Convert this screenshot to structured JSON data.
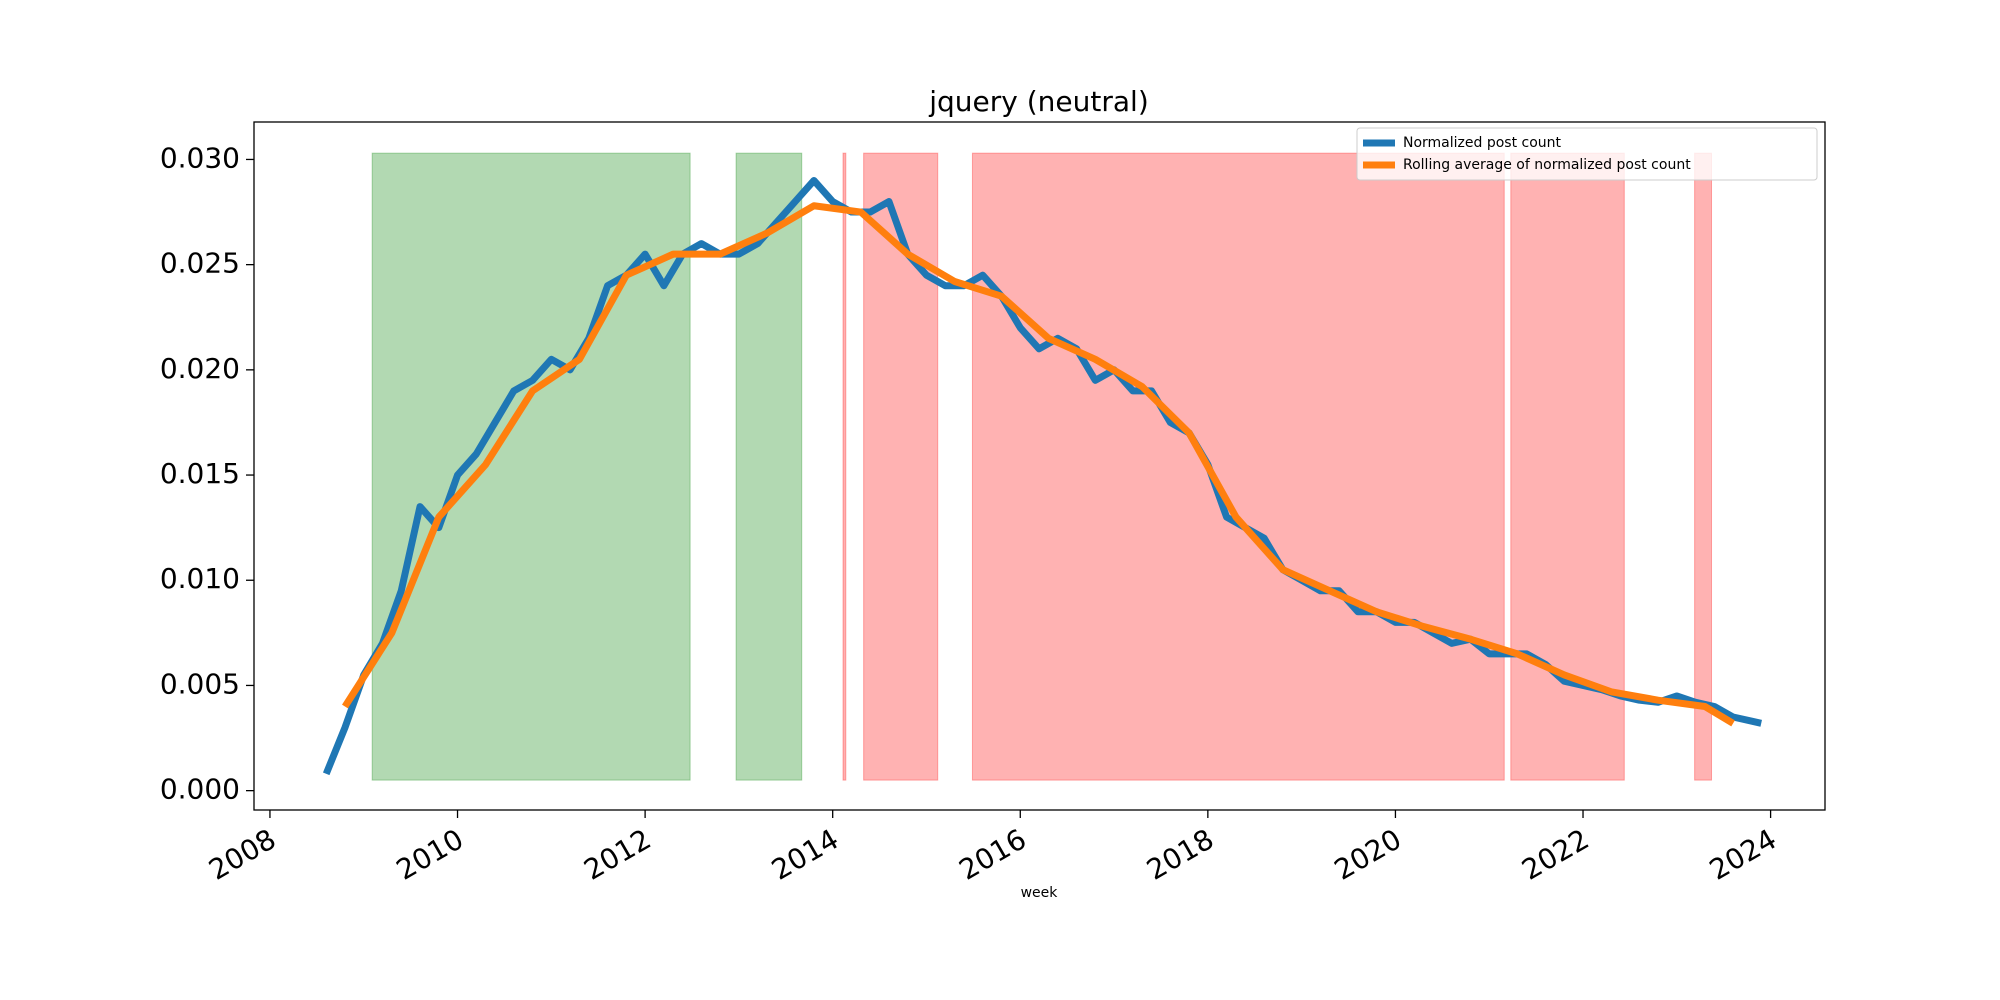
{
  "chart_data": {
    "type": "line",
    "title": "jquery (neutral)",
    "x_label": "week",
    "xlim": [
      2007.83,
      2024.58
    ],
    "xticks": [
      2008,
      2010,
      2012,
      2014,
      2016,
      2018,
      2020,
      2022,
      2024
    ],
    "ylim": [
      -0.00092,
      0.03178
    ],
    "yticks": [
      {
        "value": 0,
        "label": "0.000"
      },
      {
        "value": 0.005,
        "label": "0.005"
      },
      {
        "value": 0.01,
        "label": "0.010"
      },
      {
        "value": 0.015,
        "label": "0.015"
      },
      {
        "value": 0.02,
        "label": "0.020"
      },
      {
        "value": 0.025,
        "label": "0.025"
      },
      {
        "value": 0.03,
        "label": "0.030"
      }
    ],
    "legend": "upper right",
    "spans": [
      {
        "x0": 2009.09,
        "x1": 2012.48,
        "y0": 0.0005,
        "y1": 0.0303,
        "color": "#008000",
        "alpha": 0.3
      },
      {
        "x0": 2012.97,
        "x1": 2013.67,
        "y0": 0.0005,
        "y1": 0.0303,
        "color": "#008000",
        "alpha": 0.3
      },
      {
        "x0": 2014.11,
        "x1": 2014.14,
        "y0": 0.0005,
        "y1": 0.0303,
        "color": "#ff0000",
        "alpha": 0.3
      },
      {
        "x0": 2014.33,
        "x1": 2015.12,
        "y0": 0.0005,
        "y1": 0.0303,
        "color": "#ff0000",
        "alpha": 0.3
      },
      {
        "x0": 2015.49,
        "x1": 2021.16,
        "y0": 0.0005,
        "y1": 0.0303,
        "color": "#ff0000",
        "alpha": 0.3
      },
      {
        "x0": 2021.23,
        "x1": 2022.44,
        "y0": 0.0005,
        "y1": 0.0303,
        "color": "#ff0000",
        "alpha": 0.3
      },
      {
        "x0": 2023.19,
        "x1": 2023.37,
        "y0": 0.0005,
        "y1": 0.0303,
        "color": "#ff0000",
        "alpha": 0.3
      }
    ],
    "series": [
      {
        "name": "Normalized post count",
        "color": "#1f77b4",
        "width": 7,
        "x": [
          2008.6,
          2008.8,
          2009.0,
          2009.2,
          2009.4,
          2009.6,
          2009.8,
          2010.0,
          2010.2,
          2010.4,
          2010.6,
          2010.8,
          2011.0,
          2011.2,
          2011.4,
          2011.6,
          2011.8,
          2012.0,
          2012.2,
          2012.4,
          2012.6,
          2012.8,
          2013.0,
          2013.2,
          2013.4,
          2013.6,
          2013.8,
          2014.0,
          2014.2,
          2014.4,
          2014.6,
          2014.8,
          2015.0,
          2015.2,
          2015.4,
          2015.6,
          2015.8,
          2016.0,
          2016.2,
          2016.4,
          2016.6,
          2016.8,
          2017.0,
          2017.2,
          2017.4,
          2017.6,
          2017.8,
          2018.0,
          2018.2,
          2018.4,
          2018.6,
          2018.8,
          2019.0,
          2019.2,
          2019.4,
          2019.6,
          2019.8,
          2020.0,
          2020.2,
          2020.4,
          2020.6,
          2020.8,
          2021.0,
          2021.2,
          2021.4,
          2021.6,
          2021.8,
          2022.0,
          2022.2,
          2022.4,
          2022.6,
          2022.8,
          2023.0,
          2023.2,
          2023.4,
          2023.6,
          2023.8,
          2023.9
        ],
        "values": [
          0.0008,
          0.003,
          0.0055,
          0.007,
          0.0095,
          0.0135,
          0.0125,
          0.015,
          0.016,
          0.0175,
          0.019,
          0.0195,
          0.0205,
          0.02,
          0.0215,
          0.024,
          0.0245,
          0.0255,
          0.024,
          0.0255,
          0.026,
          0.0255,
          0.0255,
          0.026,
          0.027,
          0.028,
          0.029,
          0.028,
          0.0275,
          0.0275,
          0.028,
          0.0255,
          0.0245,
          0.024,
          0.024,
          0.0245,
          0.0235,
          0.022,
          0.021,
          0.0215,
          0.021,
          0.0195,
          0.02,
          0.019,
          0.019,
          0.0175,
          0.017,
          0.0155,
          0.013,
          0.0125,
          0.012,
          0.0105,
          0.01,
          0.0095,
          0.0095,
          0.0085,
          0.0085,
          0.008,
          0.008,
          0.0075,
          0.007,
          0.0072,
          0.0065,
          0.0065,
          0.0065,
          0.006,
          0.0052,
          0.005,
          0.0048,
          0.0045,
          0.0043,
          0.0042,
          0.0045,
          0.0042,
          0.004,
          0.0035,
          0.0033,
          0.0032
        ]
      },
      {
        "name": "Rolling average of normalized post count",
        "color": "#ff7f0e",
        "width": 7,
        "x": [
          2008.8,
          2009.3,
          2009.8,
          2010.3,
          2010.8,
          2011.3,
          2011.8,
          2012.3,
          2012.8,
          2013.3,
          2013.8,
          2014.3,
          2014.8,
          2015.3,
          2015.8,
          2016.3,
          2016.8,
          2017.3,
          2017.8,
          2018.3,
          2018.8,
          2019.3,
          2019.8,
          2020.3,
          2020.8,
          2021.3,
          2021.8,
          2022.3,
          2022.8,
          2023.3,
          2023.6
        ],
        "values": [
          0.004,
          0.0075,
          0.013,
          0.0155,
          0.019,
          0.0205,
          0.0245,
          0.0255,
          0.0255,
          0.0265,
          0.0278,
          0.0275,
          0.0255,
          0.0242,
          0.0235,
          0.0215,
          0.0205,
          0.0192,
          0.017,
          0.013,
          0.0105,
          0.0095,
          0.0085,
          0.0078,
          0.0072,
          0.0065,
          0.0055,
          0.0047,
          0.0043,
          0.004,
          0.0032
        ]
      }
    ]
  }
}
